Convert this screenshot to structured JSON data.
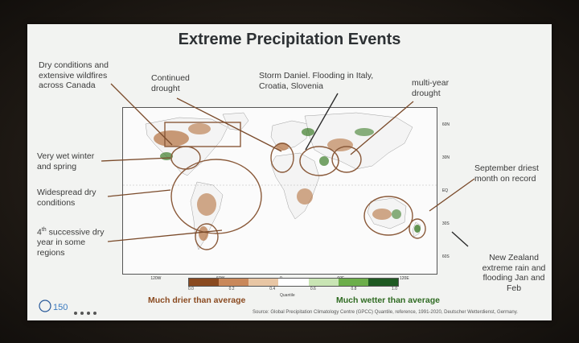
{
  "slide": {
    "title": "Extreme Precipitation Events",
    "source": "Source: Global Precipitation Climatology Centre (GPCC) Quantile, reference, 1991-2020, Deutscher Wetterdienst, Germany."
  },
  "annotations": {
    "canada": "Dry conditions and extensive wildfires across Canada",
    "drought": "Continued drought",
    "daniel": "Storm Daniel. Flooding in Italy, Croatia, Slovenia",
    "multiyear": "multi-year drought",
    "wet_winter": "Very wet winter and spring",
    "widespread": "Widespread dry conditions",
    "fourth_pre": "4",
    "fourth_sup": "th",
    "fourth_post": " successive dry year in some regions",
    "september": "September driest month on record",
    "nz": "New Zealand extreme rain and flooding Jan and Feb"
  },
  "legend": {
    "drier": "Much drier than average",
    "wetter": "Much wetter than average",
    "quantile_label": "Quantile",
    "ticks": [
      "0.0",
      "0.2",
      "0.4",
      "0.6",
      "0.8",
      "1.0"
    ],
    "colors": [
      "#8a4a20",
      "#c9885a",
      "#e8c6a4",
      "#ffffff",
      "#c9e5b4",
      "#6cae4a",
      "#1f5a22"
    ]
  },
  "map_axis": {
    "lon_labels": [
      "120W",
      "60W",
      "0",
      "60E",
      "120E"
    ],
    "lat_labels": [
      "60N",
      "30N",
      "EQ",
      "30S",
      "60S"
    ]
  },
  "colors": {
    "dry": "#b4713e",
    "wet": "#3d7d2a",
    "circle": "#8a5a3a"
  }
}
